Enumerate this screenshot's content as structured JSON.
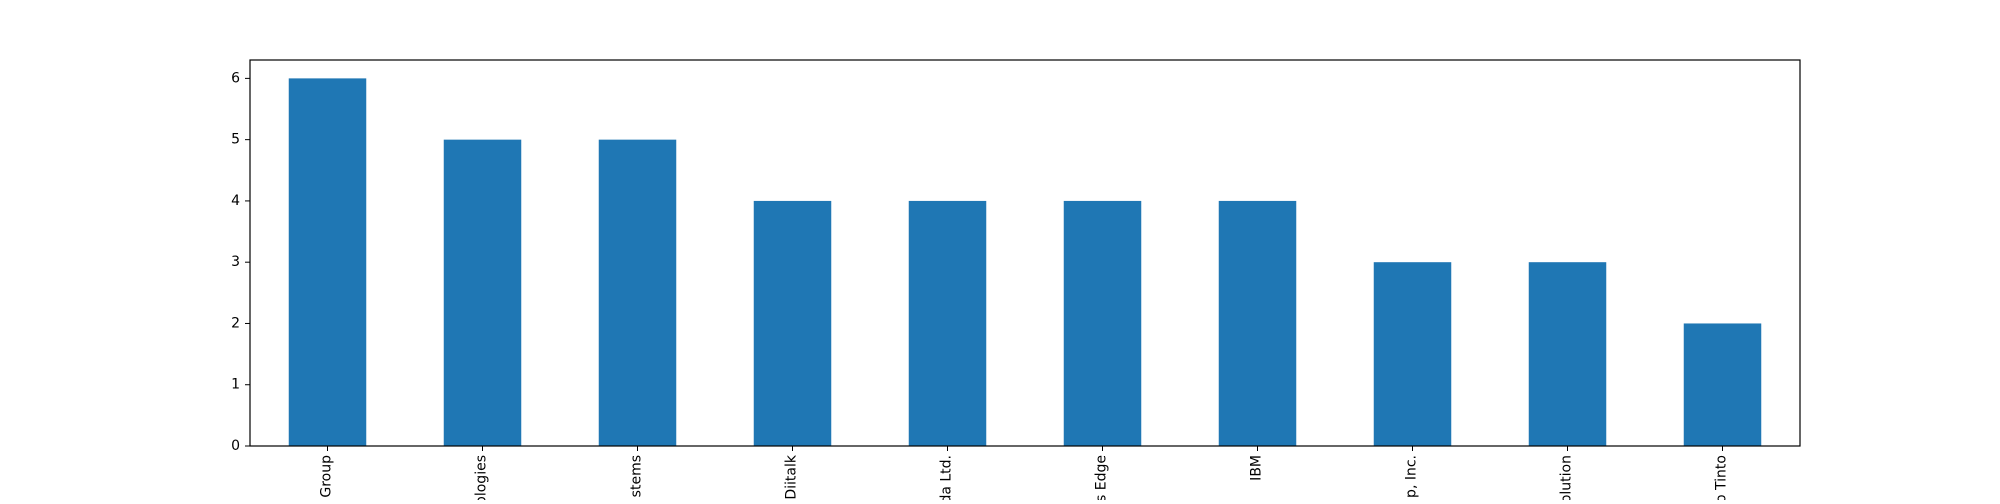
{
  "chart_data": {
    "type": "bar",
    "title": "",
    "xlabel": "",
    "ylabel": "",
    "categories": [
      "Group",
      "ologies",
      "stems",
      "Diitalk",
      "da Ltd.",
      "s Edge",
      "IBM",
      "p, Inc.",
      "olution",
      "o Tinto"
    ],
    "values": [
      6,
      5,
      5,
      4,
      4,
      4,
      4,
      3,
      3,
      2
    ],
    "ylim": [
      0,
      6.3
    ],
    "yticks": [
      0,
      1,
      2,
      3,
      4,
      5,
      6
    ],
    "grid": false,
    "legend": "none",
    "bar_color": "#1f77b4"
  }
}
